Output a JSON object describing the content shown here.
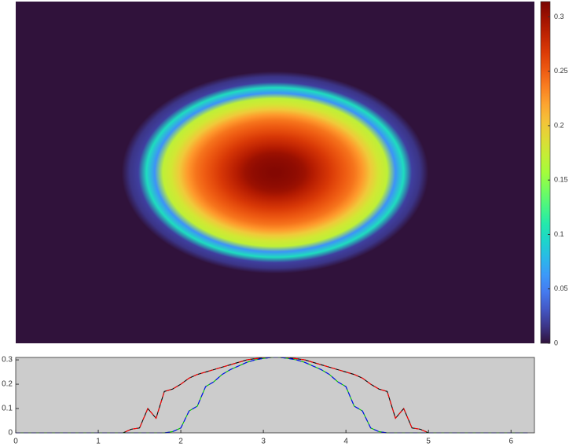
{
  "chart_data": [
    {
      "type": "heatmap",
      "colormap": "turbo",
      "clim": [
        0,
        0.314
      ],
      "cticks": [
        0,
        0.05,
        0.1,
        0.15,
        0.2,
        0.25,
        0.3
      ]
    },
    {
      "type": "line",
      "x": [
        0,
        0.1,
        0.2,
        0.3,
        0.4,
        0.5,
        0.6,
        0.7,
        0.8,
        0.9,
        1,
        1.1,
        1.2,
        1.3,
        1.4,
        1.5,
        1.6,
        1.7,
        1.8,
        1.9,
        2,
        2.1,
        2.2,
        2.3,
        2.4,
        2.5,
        2.6,
        2.7,
        2.8,
        2.9,
        3,
        3.1,
        3.2,
        3.3,
        3.4,
        3.5,
        3.6,
        3.7,
        3.8,
        3.9,
        4,
        4.1,
        4.2,
        4.3,
        4.4,
        4.5,
        4.6,
        4.7,
        4.8,
        4.9,
        5,
        5.1,
        5.2,
        5.3,
        5.4,
        5.5,
        5.6,
        5.7,
        5.8,
        5.9,
        6,
        6.1,
        6.2
      ],
      "series": [
        {
          "color": "#000000",
          "dash": false,
          "values": [
            0,
            0,
            0,
            0,
            0,
            0,
            0,
            0,
            0,
            0,
            0,
            0,
            0,
            0,
            0.015,
            0.02,
            0.1,
            0.06,
            0.17,
            0.18,
            0.2,
            0.225,
            0.24,
            0.25,
            0.26,
            0.27,
            0.28,
            0.29,
            0.3,
            0.305,
            0.308,
            0.31,
            0.31,
            0.308,
            0.305,
            0.3,
            0.29,
            0.28,
            0.27,
            0.26,
            0.25,
            0.24,
            0.225,
            0.2,
            0.18,
            0.17,
            0.06,
            0.1,
            0.02,
            0.015,
            0,
            0,
            0,
            0,
            0,
            0,
            0,
            0,
            0,
            0,
            0,
            0,
            0
          ]
        },
        {
          "color": "#ff0000",
          "dash": true,
          "values": [
            0,
            0,
            0,
            0,
            0,
            0,
            0,
            0,
            0,
            0,
            0,
            0,
            0,
            0,
            0.015,
            0.02,
            0.1,
            0.06,
            0.17,
            0.18,
            0.2,
            0.225,
            0.24,
            0.25,
            0.26,
            0.27,
            0.28,
            0.29,
            0.3,
            0.305,
            0.308,
            0.31,
            0.31,
            0.308,
            0.305,
            0.3,
            0.29,
            0.28,
            0.27,
            0.26,
            0.25,
            0.24,
            0.225,
            0.2,
            0.18,
            0.17,
            0.06,
            0.1,
            0.02,
            0.015,
            0,
            0,
            0,
            0,
            0,
            0,
            0,
            0,
            0,
            0,
            0,
            0,
            0
          ]
        },
        {
          "color": "#00c000",
          "dash": false,
          "values": [
            0,
            0,
            0,
            0,
            0,
            0,
            0,
            0,
            0,
            0,
            0,
            0,
            0,
            0,
            0,
            0,
            0,
            0,
            0,
            0.005,
            0.02,
            0.09,
            0.11,
            0.19,
            0.21,
            0.24,
            0.26,
            0.275,
            0.29,
            0.3,
            0.306,
            0.31,
            0.31,
            0.306,
            0.3,
            0.29,
            0.275,
            0.26,
            0.24,
            0.21,
            0.19,
            0.11,
            0.09,
            0.02,
            0.005,
            0,
            0,
            0,
            0,
            0,
            0,
            0,
            0,
            0,
            0,
            0,
            0,
            0,
            0,
            0,
            0,
            0,
            0
          ]
        },
        {
          "color": "#0000ff",
          "dash": true,
          "values": [
            0,
            0,
            0,
            0,
            0,
            0,
            0,
            0,
            0,
            0,
            0,
            0,
            0,
            0,
            0,
            0,
            0,
            0,
            0,
            0.005,
            0.02,
            0.09,
            0.11,
            0.19,
            0.21,
            0.24,
            0.26,
            0.275,
            0.29,
            0.3,
            0.306,
            0.31,
            0.31,
            0.306,
            0.3,
            0.29,
            0.275,
            0.26,
            0.24,
            0.21,
            0.19,
            0.11,
            0.09,
            0.02,
            0.005,
            0,
            0,
            0,
            0,
            0,
            0,
            0,
            0,
            0,
            0,
            0,
            0,
            0,
            0,
            0,
            0,
            0,
            0
          ]
        }
      ],
      "xlim": [
        0,
        6.2832
      ],
      "ylim": [
        0,
        0.31
      ],
      "xticks": [
        0,
        1,
        2,
        3,
        4,
        5,
        6
      ],
      "yticks": [
        0,
        0.1,
        0.2,
        0.3
      ],
      "background": "#cccccc"
    }
  ]
}
